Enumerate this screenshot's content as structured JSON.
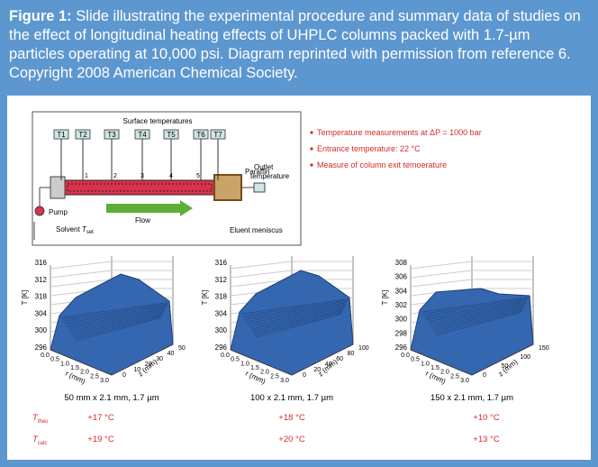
{
  "caption": {
    "label": "Figure 1:",
    "text": "Slide illustrating the experimental procedure and summary data of studies on the effect of longitudinal heating effects of UHPLC columns packed with 1.7-µm particles operating at 10,000 psi. Diagram reprinted with permission from reference 6. Copyright 2008 American Chemical Society."
  },
  "diagram": {
    "title": "Surface temperatures",
    "sensors": [
      "T1",
      "T2",
      "T3",
      "T4",
      "T5",
      "T6",
      "T7"
    ],
    "positions": [
      "1",
      "2",
      "3",
      "4",
      "5"
    ],
    "paraffin": "Paraffin",
    "outlet": "Outlet temperature",
    "pump": "Pump",
    "flow": "Flow",
    "solvent": {
      "text": "Solvent",
      "var": "T",
      "sub": "set"
    },
    "eluent": "Eluent meniscus"
  },
  "notes": [
    "Temperature measurements at ΔP = 1000 bar",
    "Entrance temperature: 22 °C",
    "Measure of column exit temoerature"
  ],
  "plots": [
    {
      "t_axis": "T [K]",
      "r_axis": "r (mm)",
      "z_axis": "z (mm)",
      "t_ticks": [
        "316",
        "312",
        "318",
        "304",
        "300",
        "296"
      ],
      "r_ticks": [
        "0.0",
        "0.5",
        "1.0",
        "1.5",
        "2.0",
        "2.5",
        "3.0"
      ],
      "z_ticks": [
        "0",
        "10",
        "20",
        "30",
        "40",
        "50"
      ],
      "label": "50 mm x 2.1 mm, 1.7 µm"
    },
    {
      "t_axis": "T [K]",
      "r_axis": "r (mm)",
      "z_axis": "z (mm)",
      "t_ticks": [
        "316",
        "312",
        "318",
        "304",
        "300",
        "296"
      ],
      "r_ticks": [
        "0.0",
        "0.5",
        "1.0",
        "1.5",
        "2.0",
        "2.5",
        "3.0"
      ],
      "z_ticks": [
        "0",
        "20",
        "40",
        "60",
        "80",
        "100"
      ],
      "label": "100 x 2.1 mm, 1.7 µm"
    },
    {
      "t_axis": "T [K]",
      "r_axis": "r (mm)",
      "z_axis": "z (mm)",
      "t_ticks": [
        "308",
        "306",
        "304",
        "302",
        "300",
        "298",
        "296"
      ],
      "r_ticks": [
        "0.0",
        "0.5",
        "1.0",
        "1.5",
        "2.0",
        "2.5",
        "3.0"
      ],
      "z_ticks": [
        "0",
        "50",
        "100",
        "150"
      ],
      "label": "150 x 2.1 mm, 1.7 µm"
    }
  ],
  "results": {
    "theo": {
      "var": "T",
      "sub": "theo",
      "values": [
        "+17 °C",
        "+18 °C",
        "+10 °C"
      ]
    },
    "calc": {
      "var": "T",
      "sub": "calc",
      "values": [
        "+19 °C",
        "+20 °C",
        "+13 °C"
      ]
    }
  }
}
